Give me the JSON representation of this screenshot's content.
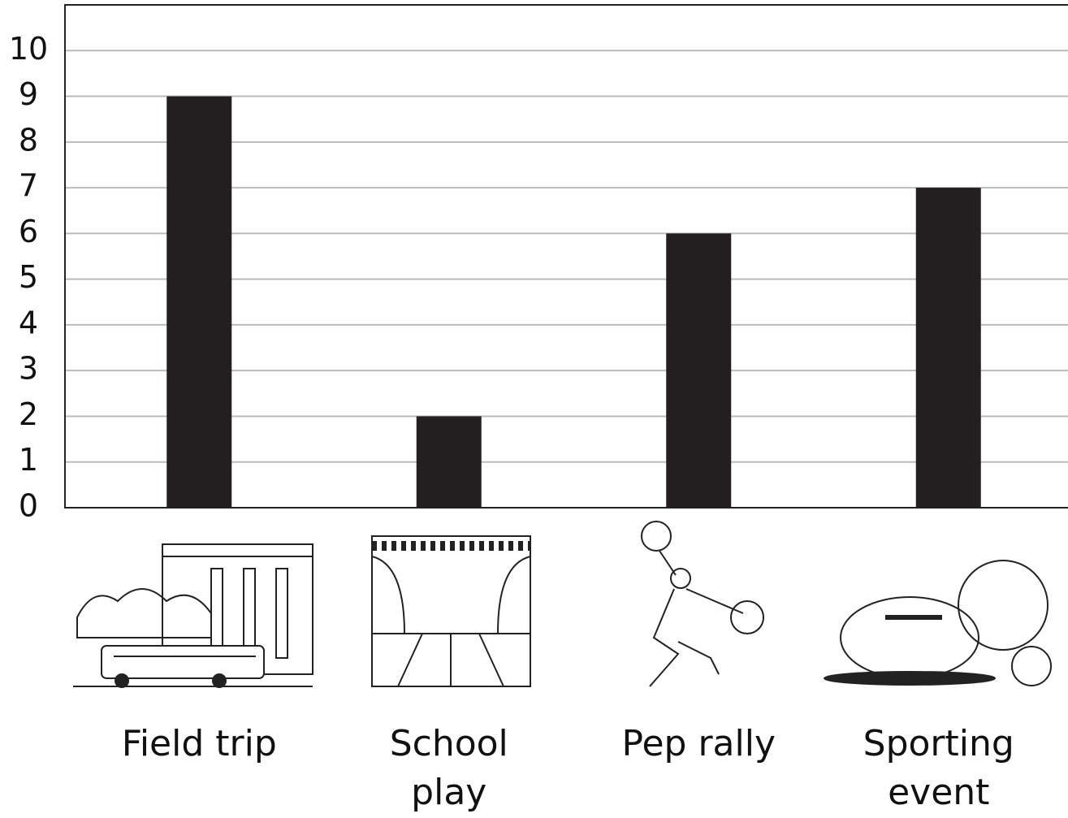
{
  "chart_data": {
    "type": "bar",
    "categories": [
      "Field trip",
      "School play",
      "Pep rally",
      "Sporting event"
    ],
    "values": [
      9,
      2,
      6,
      7
    ],
    "color": "#231f20",
    "ylim": [
      0,
      11
    ],
    "yticks": [
      0,
      1,
      2,
      3,
      4,
      5,
      6,
      7,
      8,
      9,
      10
    ],
    "grid": true
  }
}
